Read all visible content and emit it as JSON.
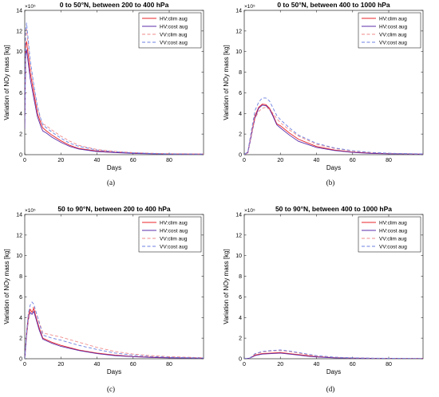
{
  "chart_data": [
    {
      "type": "line",
      "caption": "(a)",
      "title": "0 to 50°N, between 200 to 400 hPa",
      "xlabel": "Days",
      "ylabel": "Variation of NOy mass [kg]",
      "xlim": [
        0,
        99
      ],
      "ylim": [
        0,
        14
      ],
      "y_multiplier": "×10⁵",
      "xticks": [
        0,
        20,
        40,
        60,
        80
      ],
      "yticks": [
        0,
        2,
        4,
        6,
        8,
        10,
        12,
        14
      ],
      "legend_position": "top-right",
      "series": [
        {
          "name": "HV:clim aug",
          "color": "#e8232a",
          "dash": "solid",
          "x": [
            0,
            0.5,
            1,
            2,
            3,
            5,
            7,
            9,
            10,
            12,
            15,
            20,
            25,
            30,
            40,
            50,
            60,
            70,
            80,
            99
          ],
          "y": [
            3.0,
            10.5,
            11.0,
            9.5,
            8.0,
            6.0,
            4.0,
            3.0,
            2.6,
            2.3,
            1.9,
            1.35,
            0.9,
            0.6,
            0.35,
            0.22,
            0.15,
            0.1,
            0.07,
            0.05
          ]
        },
        {
          "name": "HV:cost aug",
          "color": "#5b2ca8",
          "dash": "solid",
          "x": [
            0,
            0.5,
            1,
            2,
            3,
            5,
            7,
            9,
            10,
            12,
            15,
            20,
            25,
            30,
            40,
            50,
            60,
            70,
            80,
            99
          ],
          "y": [
            2.5,
            9.5,
            10.2,
            8.8,
            7.4,
            5.5,
            3.7,
            2.7,
            2.3,
            2.1,
            1.7,
            1.2,
            0.8,
            0.55,
            0.3,
            0.2,
            0.12,
            0.08,
            0.05,
            0.04
          ]
        },
        {
          "name": "VV:clim aug",
          "color": "#f08a8a",
          "dash": "dash",
          "x": [
            0,
            0.5,
            1,
            2,
            3,
            5,
            7,
            9,
            10,
            12,
            15,
            20,
            25,
            30,
            40,
            50,
            60,
            70,
            80,
            99
          ],
          "y": [
            3.5,
            11.5,
            12.2,
            10.5,
            8.8,
            6.5,
            4.5,
            3.3,
            3.0,
            2.8,
            2.4,
            1.8,
            1.3,
            0.9,
            0.5,
            0.32,
            0.2,
            0.14,
            0.1,
            0.07
          ]
        },
        {
          "name": "VV:cost aug",
          "color": "#6b7fe0",
          "dash": "dash",
          "x": [
            0,
            0.5,
            1,
            2,
            3,
            5,
            7,
            9,
            10,
            12,
            15,
            20,
            25,
            30,
            40,
            50,
            60,
            70,
            80,
            99
          ],
          "y": [
            3.5,
            12.0,
            12.8,
            11.0,
            9.2,
            6.8,
            4.7,
            3.4,
            2.9,
            2.6,
            2.2,
            1.6,
            1.1,
            0.8,
            0.45,
            0.28,
            0.18,
            0.12,
            0.08,
            0.06
          ]
        }
      ]
    },
    {
      "type": "line",
      "caption": "(b)",
      "title": "0 to 50°N, between 400 to 1000 hPa",
      "xlabel": "Days",
      "ylabel": "Variation of NOy mass [kg]",
      "xlim": [
        0,
        99
      ],
      "ylim": [
        0,
        14
      ],
      "y_multiplier": "×10⁵",
      "xticks": [
        0,
        20,
        40,
        60,
        80
      ],
      "yticks": [
        0,
        2,
        4,
        6,
        8,
        10,
        12,
        14
      ],
      "legend_position": "top-right",
      "series": [
        {
          "name": "HV:clim aug",
          "color": "#e8232a",
          "dash": "solid",
          "x": [
            0,
            2,
            4,
            6,
            8,
            10,
            12,
            14,
            16,
            18,
            20,
            25,
            30,
            40,
            50,
            60,
            70,
            80,
            99
          ],
          "y": [
            0,
            0.2,
            2.0,
            3.8,
            4.6,
            4.9,
            4.85,
            4.5,
            3.8,
            3.0,
            2.8,
            2.1,
            1.5,
            0.8,
            0.45,
            0.25,
            0.15,
            0.1,
            0.05
          ]
        },
        {
          "name": "HV:cost aug",
          "color": "#5b2ca8",
          "dash": "solid",
          "x": [
            0,
            2,
            4,
            6,
            8,
            10,
            12,
            14,
            16,
            18,
            20,
            25,
            30,
            40,
            50,
            60,
            70,
            80,
            99
          ],
          "y": [
            0,
            0.2,
            1.9,
            3.6,
            4.5,
            4.8,
            4.75,
            4.4,
            3.7,
            2.9,
            2.6,
            1.9,
            1.3,
            0.7,
            0.4,
            0.22,
            0.12,
            0.08,
            0.04
          ]
        },
        {
          "name": "VV:clim aug",
          "color": "#f08a8a",
          "dash": "dash",
          "x": [
            0,
            2,
            4,
            6,
            8,
            10,
            12,
            14,
            16,
            18,
            20,
            25,
            30,
            40,
            50,
            60,
            70,
            80,
            99
          ],
          "y": [
            0,
            0.2,
            2.0,
            3.5,
            4.2,
            4.5,
            4.6,
            4.4,
            4.0,
            3.5,
            3.1,
            2.4,
            1.8,
            1.0,
            0.6,
            0.35,
            0.2,
            0.12,
            0.06
          ]
        },
        {
          "name": "VV:cost aug",
          "color": "#6b7fe0",
          "dash": "dash",
          "x": [
            0,
            2,
            4,
            6,
            8,
            10,
            12,
            14,
            16,
            18,
            20,
            25,
            30,
            40,
            50,
            60,
            70,
            80,
            99
          ],
          "y": [
            0,
            0.3,
            2.4,
            4.3,
            5.1,
            5.5,
            5.5,
            5.2,
            4.5,
            3.8,
            3.4,
            2.6,
            1.9,
            1.1,
            0.65,
            0.38,
            0.22,
            0.14,
            0.07
          ]
        }
      ]
    },
    {
      "type": "line",
      "caption": "(c)",
      "title": "50 to 90°N, between 200 to 400 hPa",
      "xlabel": "Days",
      "ylabel": "Variation of NOy mass [kg]",
      "xlim": [
        0,
        99
      ],
      "ylim": [
        0,
        14
      ],
      "y_multiplier": "×10⁵",
      "xticks": [
        0,
        20,
        40,
        60,
        80
      ],
      "yticks": [
        0,
        2,
        4,
        6,
        8,
        10,
        12,
        14
      ],
      "legend_position": "top-right",
      "series": [
        {
          "name": "HV:clim aug",
          "color": "#e8232a",
          "dash": "solid",
          "x": [
            0,
            1,
            2,
            3,
            4,
            5,
            6,
            8,
            10,
            15,
            20,
            30,
            40,
            50,
            60,
            70,
            80,
            99
          ],
          "y": [
            0,
            2.5,
            4.2,
            4.8,
            4.5,
            4.9,
            4.2,
            3.0,
            2.0,
            1.6,
            1.3,
            0.85,
            0.55,
            0.35,
            0.22,
            0.15,
            0.1,
            0.06
          ]
        },
        {
          "name": "HV:cost aug",
          "color": "#5b2ca8",
          "dash": "solid",
          "x": [
            0,
            1,
            2,
            3,
            4,
            5,
            6,
            8,
            10,
            15,
            20,
            30,
            40,
            50,
            60,
            70,
            80,
            99
          ],
          "y": [
            0,
            2.2,
            3.8,
            4.5,
            4.3,
            4.6,
            4.0,
            2.8,
            1.9,
            1.5,
            1.2,
            0.8,
            0.5,
            0.3,
            0.2,
            0.12,
            0.08,
            0.05
          ]
        },
        {
          "name": "VV:clim aug",
          "color": "#f08a8a",
          "dash": "dash",
          "x": [
            0,
            1,
            2,
            3,
            4,
            5,
            6,
            8,
            10,
            15,
            20,
            30,
            40,
            50,
            60,
            70,
            80,
            99
          ],
          "y": [
            0,
            2.0,
            3.8,
            4.6,
            4.9,
            5.0,
            4.6,
            3.6,
            2.5,
            2.3,
            2.1,
            1.6,
            1.1,
            0.7,
            0.45,
            0.3,
            0.2,
            0.1
          ]
        },
        {
          "name": "VV:cost aug",
          "color": "#6b7fe0",
          "dash": "dash",
          "x": [
            0,
            1,
            2,
            3,
            4,
            5,
            6,
            8,
            10,
            15,
            20,
            30,
            40,
            50,
            60,
            70,
            80,
            99
          ],
          "y": [
            0,
            2.5,
            4.4,
            5.2,
            5.5,
            5.3,
            4.7,
            3.5,
            2.3,
            2.0,
            1.8,
            1.3,
            0.9,
            0.55,
            0.35,
            0.22,
            0.14,
            0.08
          ]
        }
      ]
    },
    {
      "type": "line",
      "caption": "(d)",
      "title": "50 to 90°N, between 400 to 1000 hPa",
      "xlabel": "Days",
      "ylabel": "Variation of NOy mass [kg]",
      "xlim": [
        0,
        99
      ],
      "ylim": [
        0,
        14
      ],
      "y_multiplier": "×10⁵",
      "xticks": [
        0,
        20,
        40,
        60,
        80
      ],
      "yticks": [
        0,
        2,
        4,
        6,
        8,
        10,
        12,
        14
      ],
      "legend_position": "top-right",
      "series": [
        {
          "name": "HV:clim aug",
          "color": "#e8232a",
          "dash": "solid",
          "x": [
            0,
            3,
            6,
            10,
            15,
            20,
            25,
            30,
            35,
            40,
            50,
            60,
            70,
            80,
            99
          ],
          "y": [
            0,
            0.05,
            0.35,
            0.5,
            0.55,
            0.6,
            0.5,
            0.4,
            0.3,
            0.2,
            0.1,
            0.06,
            0.04,
            0.03,
            0.02
          ]
        },
        {
          "name": "HV:cost aug",
          "color": "#5b2ca8",
          "dash": "solid",
          "x": [
            0,
            3,
            6,
            10,
            15,
            20,
            25,
            30,
            35,
            40,
            50,
            60,
            70,
            80,
            99
          ],
          "y": [
            0,
            0.05,
            0.3,
            0.45,
            0.5,
            0.55,
            0.45,
            0.35,
            0.25,
            0.17,
            0.08,
            0.05,
            0.03,
            0.02,
            0.01
          ]
        },
        {
          "name": "VV:clim aug",
          "color": "#f08a8a",
          "dash": "dash",
          "x": [
            0,
            3,
            6,
            10,
            15,
            20,
            25,
            30,
            35,
            40,
            50,
            60,
            70,
            80,
            99
          ],
          "y": [
            0,
            0.05,
            0.45,
            0.65,
            0.75,
            0.8,
            0.7,
            0.55,
            0.4,
            0.28,
            0.14,
            0.08,
            0.05,
            0.03,
            0.02
          ]
        },
        {
          "name": "VV:cost aug",
          "color": "#6b7fe0",
          "dash": "dash",
          "x": [
            0,
            3,
            6,
            10,
            15,
            20,
            25,
            30,
            35,
            40,
            50,
            60,
            70,
            80,
            99
          ],
          "y": [
            0,
            0.05,
            0.5,
            0.7,
            0.8,
            0.85,
            0.75,
            0.6,
            0.45,
            0.3,
            0.15,
            0.09,
            0.06,
            0.04,
            0.02
          ]
        }
      ]
    }
  ]
}
